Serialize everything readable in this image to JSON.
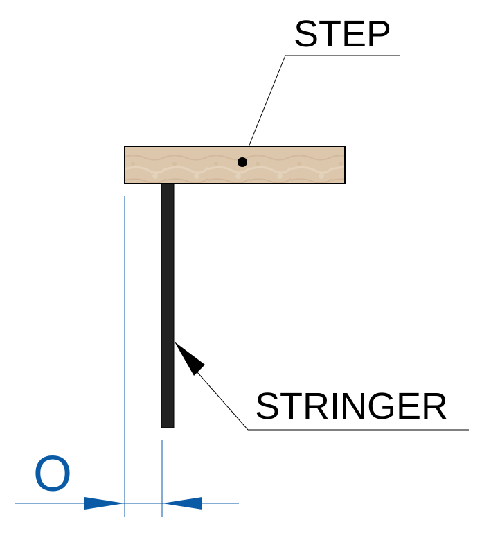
{
  "labels": {
    "step": "STEP",
    "stringer": "STRINGER"
  },
  "dimension": {
    "label": "O"
  },
  "colors": {
    "step_fill": "#dcc7ad",
    "step_grain": "#c9ae8f",
    "outline": "#000000",
    "stringer": "#222222",
    "dimension": "#0b5aa6",
    "background": "#ffffff"
  }
}
